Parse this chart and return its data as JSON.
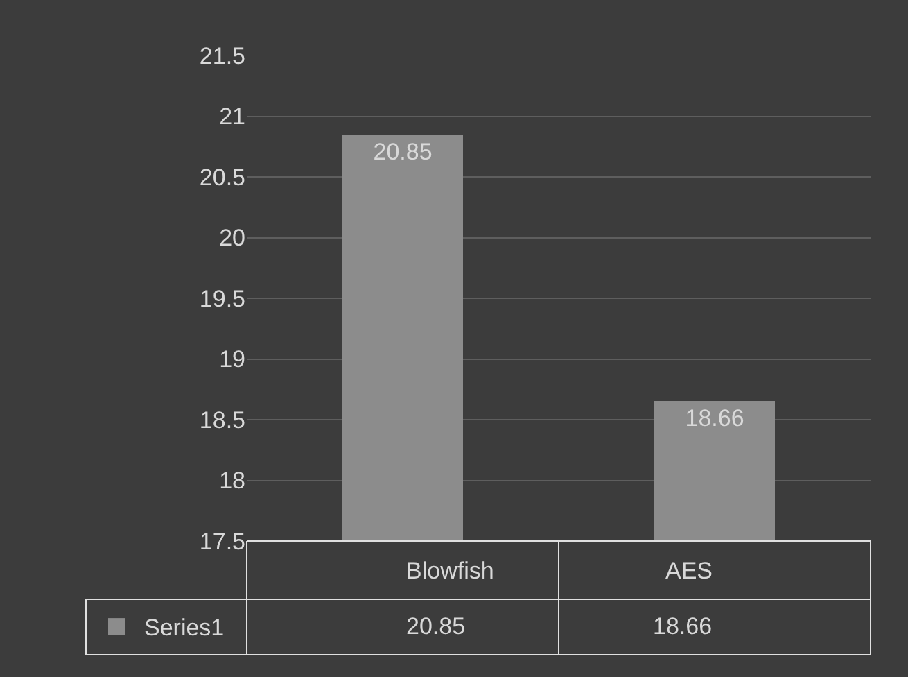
{
  "chart_data": {
    "type": "bar",
    "categories": [
      "Blowfish",
      "AES"
    ],
    "series": [
      {
        "name": "Series1",
        "color": "#8c8c8c",
        "values": [
          20.85,
          18.66
        ]
      }
    ],
    "ylim": [
      17.5,
      21.5
    ],
    "yticks": [
      17.5,
      18,
      18.5,
      19,
      19.5,
      20,
      20.5,
      21,
      21.5
    ],
    "grid": "y",
    "legend": "bottom left",
    "data_labels": true,
    "annotations": [
      "20.85",
      "18.66"
    ]
  }
}
